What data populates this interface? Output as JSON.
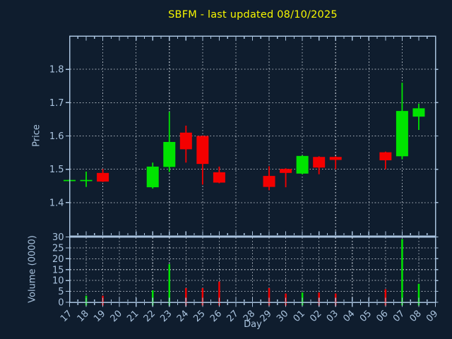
{
  "colors": {
    "background": "#0f1d2e",
    "frame": "#a9c3de",
    "grid": "#c6cdd5",
    "tick_label": "#a9c3de",
    "title": "#f6f600",
    "up": "#00e400",
    "down": "#f40000"
  },
  "chart_data": {
    "type": "candlestick",
    "title": "SBFM - last updated 08/10/2025",
    "xlabel": "Day",
    "ylabel_price": "Price",
    "ylabel_volume": "Volume (0000)",
    "grid": true,
    "x_ticklabels": [
      "17",
      "18",
      "19",
      "20",
      "21",
      "22",
      "23",
      "24",
      "25",
      "26",
      "27",
      "28",
      "29",
      "30",
      "01",
      "02",
      "03",
      "04",
      "05",
      "06",
      "07",
      "08",
      "09"
    ],
    "price_axis": {
      "min": 1.3,
      "max": 1.9,
      "ticks": [
        1.4,
        1.5,
        1.6,
        1.7,
        1.8
      ]
    },
    "volume_axis": {
      "min": 0,
      "max": 30,
      "ticks": [
        0,
        5,
        10,
        15,
        20,
        25,
        30
      ]
    },
    "candles": [
      {
        "day": "17",
        "x_index": 0,
        "open": 1.468,
        "high": 1.47,
        "low": 1.464,
        "close": 1.468,
        "volume": 0,
        "direction": "up"
      },
      {
        "day": "18",
        "x_index": 1,
        "open": 1.468,
        "high": 1.493,
        "low": 1.447,
        "close": 1.468,
        "volume": 3,
        "direction": "up"
      },
      {
        "day": "19",
        "x_index": 2,
        "open": 1.489,
        "high": 1.501,
        "low": 1.462,
        "close": 1.463,
        "volume": 3,
        "direction": "down"
      },
      {
        "day": "22",
        "x_index": 5,
        "open": 1.446,
        "high": 1.52,
        "low": 1.442,
        "close": 1.508,
        "volume": 5.5,
        "direction": "up"
      },
      {
        "day": "23",
        "x_index": 6,
        "open": 1.507,
        "high": 1.672,
        "low": 1.492,
        "close": 1.582,
        "volume": 17.5,
        "direction": "up"
      },
      {
        "day": "24",
        "x_index": 7,
        "open": 1.61,
        "high": 1.631,
        "low": 1.52,
        "close": 1.56,
        "volume": 6.5,
        "direction": "down"
      },
      {
        "day": "25",
        "x_index": 8,
        "open": 1.6,
        "high": 1.601,
        "low": 1.454,
        "close": 1.516,
        "volume": 6.5,
        "direction": "down"
      },
      {
        "day": "26",
        "x_index": 9,
        "open": 1.491,
        "high": 1.508,
        "low": 1.458,
        "close": 1.46,
        "volume": 9.5,
        "direction": "down"
      },
      {
        "day": "29",
        "x_index": 12,
        "open": 1.48,
        "high": 1.509,
        "low": 1.437,
        "close": 1.447,
        "volume": 6.5,
        "direction": "down"
      },
      {
        "day": "30",
        "x_index": 13,
        "open": 1.501,
        "high": 1.503,
        "low": 1.446,
        "close": 1.489,
        "volume": 4,
        "direction": "down"
      },
      {
        "day": "01",
        "x_index": 14,
        "open": 1.487,
        "high": 1.542,
        "low": 1.485,
        "close": 1.54,
        "volume": 4.5,
        "direction": "up"
      },
      {
        "day": "02",
        "x_index": 15,
        "open": 1.537,
        "high": 1.539,
        "low": 1.485,
        "close": 1.505,
        "volume": 4.5,
        "direction": "down"
      },
      {
        "day": "03",
        "x_index": 16,
        "open": 1.537,
        "high": 1.539,
        "low": 1.5,
        "close": 1.528,
        "volume": 4,
        "direction": "down"
      },
      {
        "day": "06",
        "x_index": 19,
        "open": 1.551,
        "high": 1.553,
        "low": 1.5,
        "close": 1.527,
        "volume": 6,
        "direction": "down"
      },
      {
        "day": "07",
        "x_index": 20,
        "open": 1.539,
        "high": 1.76,
        "low": 1.53,
        "close": 1.675,
        "volume": 29,
        "direction": "up"
      },
      {
        "day": "08",
        "x_index": 21,
        "open": 1.658,
        "high": 1.697,
        "low": 1.618,
        "close": 1.683,
        "volume": 8.5,
        "direction": "up"
      }
    ]
  }
}
